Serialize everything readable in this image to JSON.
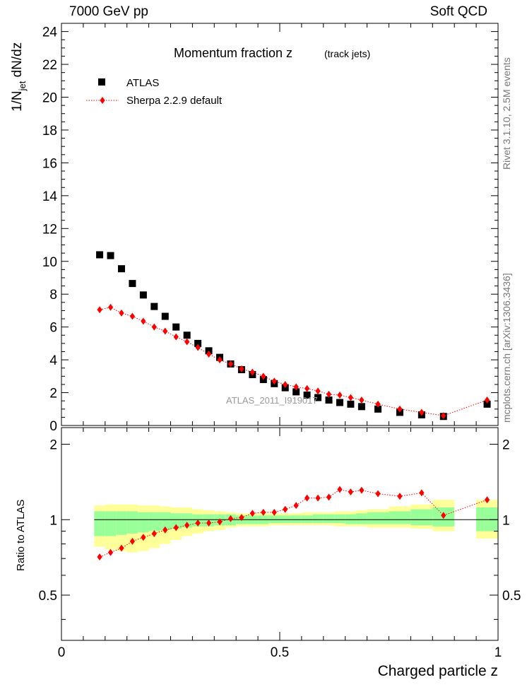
{
  "header": {
    "energy_label": "7000 GeV pp",
    "process_label": "Soft QCD"
  },
  "side": {
    "rivet_label": "Rivet 3.1.10,  2.5M events",
    "source_label": "mcplots.cern.ch [arXiv:1306.3436]"
  },
  "watermark": "ATLAS_2011_I919017",
  "chart_data": {
    "type": "scatter",
    "title": "Momentum fraction z",
    "subtitle": "(track jets)",
    "xlabel": "Charged particle z",
    "ylabel": "1/N_jet dN/dz",
    "ylabel_ratio": "Ratio to ATLAS",
    "xlim": [
      0,
      1.0
    ],
    "ylim": [
      0,
      24.5
    ],
    "ratio_ylim": [
      0.33,
      2.33
    ],
    "x_ticks": [
      "0",
      "0.5",
      "1"
    ],
    "y_ticks": [
      "0",
      "2",
      "4",
      "6",
      "8",
      "10",
      "12",
      "14",
      "16",
      "18",
      "20",
      "22",
      "24"
    ],
    "ratio_ticks": [
      "0.5",
      "1",
      "2"
    ],
    "legend": [
      "ATLAS",
      "Sherpa 2.2.9 default"
    ],
    "bins": [
      [
        0.075,
        0.1
      ],
      [
        0.1,
        0.125
      ],
      [
        0.125,
        0.15
      ],
      [
        0.15,
        0.175
      ],
      [
        0.175,
        0.2
      ],
      [
        0.2,
        0.225
      ],
      [
        0.225,
        0.25
      ],
      [
        0.25,
        0.275
      ],
      [
        0.275,
        0.3
      ],
      [
        0.3,
        0.325
      ],
      [
        0.325,
        0.35
      ],
      [
        0.35,
        0.375
      ],
      [
        0.375,
        0.4
      ],
      [
        0.4,
        0.425
      ],
      [
        0.425,
        0.45
      ],
      [
        0.45,
        0.475
      ],
      [
        0.475,
        0.5
      ],
      [
        0.5,
        0.525
      ],
      [
        0.525,
        0.55
      ],
      [
        0.55,
        0.575
      ],
      [
        0.575,
        0.6
      ],
      [
        0.6,
        0.625
      ],
      [
        0.625,
        0.65
      ],
      [
        0.65,
        0.675
      ],
      [
        0.675,
        0.7
      ],
      [
        0.7,
        0.75
      ],
      [
        0.75,
        0.8
      ],
      [
        0.8,
        0.85
      ],
      [
        0.85,
        0.9
      ],
      [
        0.95,
        1.0
      ]
    ],
    "series": [
      {
        "name": "ATLAS",
        "marker": "square",
        "color": "#000000",
        "x": [
          0.0875,
          0.1125,
          0.1375,
          0.1625,
          0.1875,
          0.2125,
          0.2375,
          0.2625,
          0.2875,
          0.3125,
          0.3375,
          0.3625,
          0.3875,
          0.4125,
          0.4375,
          0.4625,
          0.4875,
          0.5125,
          0.5375,
          0.5625,
          0.5875,
          0.6125,
          0.6375,
          0.6625,
          0.6875,
          0.725,
          0.775,
          0.825,
          0.875,
          0.975
        ],
        "y": [
          10.4,
          10.35,
          9.55,
          8.65,
          7.95,
          7.25,
          6.65,
          6.0,
          5.5,
          5.0,
          4.55,
          4.15,
          3.75,
          3.4,
          3.1,
          2.8,
          2.55,
          2.3,
          2.05,
          1.85,
          1.7,
          1.55,
          1.4,
          1.3,
          1.15,
          1.0,
          0.8,
          0.65,
          0.55,
          1.3
        ]
      },
      {
        "name": "Sherpa 2.2.9 default",
        "marker": "diamond",
        "color": "#ff0000",
        "x": [
          0.0875,
          0.1125,
          0.1375,
          0.1625,
          0.1875,
          0.2125,
          0.2375,
          0.2625,
          0.2875,
          0.3125,
          0.3375,
          0.3625,
          0.3875,
          0.4125,
          0.4375,
          0.4625,
          0.4875,
          0.5125,
          0.5375,
          0.5625,
          0.5875,
          0.6125,
          0.6375,
          0.6625,
          0.6875,
          0.725,
          0.775,
          0.825,
          0.875,
          0.975
        ],
        "y": [
          7.05,
          7.2,
          6.85,
          6.65,
          6.35,
          6.0,
          5.75,
          5.4,
          5.1,
          4.75,
          4.35,
          4.0,
          3.75,
          3.45,
          3.25,
          3.0,
          2.7,
          2.5,
          2.35,
          2.25,
          2.1,
          1.9,
          1.85,
          1.7,
          1.55,
          1.3,
          1.0,
          0.8,
          0.6,
          1.55
        ]
      }
    ],
    "ratio": [
      0.71,
      0.74,
      0.77,
      0.82,
      0.85,
      0.88,
      0.91,
      0.93,
      0.95,
      0.97,
      0.97,
      0.98,
      1.01,
      1.02,
      1.06,
      1.07,
      1.07,
      1.1,
      1.14,
      1.22,
      1.22,
      1.23,
      1.32,
      1.29,
      1.31,
      1.27,
      1.24,
      1.28,
      1.04,
      1.2
    ],
    "band_inner": [
      [
        0.86,
        1.08
      ],
      [
        0.86,
        1.08
      ],
      [
        0.87,
        1.08
      ],
      [
        0.88,
        1.08
      ],
      [
        0.89,
        1.07
      ],
      [
        0.9,
        1.07
      ],
      [
        0.91,
        1.07
      ],
      [
        0.92,
        1.06
      ],
      [
        0.93,
        1.06
      ],
      [
        0.94,
        1.05
      ],
      [
        0.94,
        1.05
      ],
      [
        0.95,
        1.05
      ],
      [
        0.95,
        1.05
      ],
      [
        0.96,
        1.04
      ],
      [
        0.96,
        1.04
      ],
      [
        0.96,
        1.04
      ],
      [
        0.97,
        1.04
      ],
      [
        0.97,
        1.04
      ],
      [
        0.97,
        1.04
      ],
      [
        0.97,
        1.04
      ],
      [
        0.97,
        1.05
      ],
      [
        0.97,
        1.05
      ],
      [
        0.97,
        1.05
      ],
      [
        0.96,
        1.05
      ],
      [
        0.96,
        1.06
      ],
      [
        0.96,
        1.07
      ],
      [
        0.96,
        1.08
      ],
      [
        0.95,
        1.1
      ],
      [
        0.94,
        1.12
      ],
      [
        0.9,
        1.12
      ]
    ],
    "band_outer": [
      [
        0.78,
        1.14
      ],
      [
        0.76,
        1.15
      ],
      [
        0.75,
        1.15
      ],
      [
        0.74,
        1.15
      ],
      [
        0.75,
        1.14
      ],
      [
        0.77,
        1.14
      ],
      [
        0.8,
        1.13
      ],
      [
        0.83,
        1.12
      ],
      [
        0.86,
        1.12
      ],
      [
        0.88,
        1.1
      ],
      [
        0.9,
        1.09
      ],
      [
        0.91,
        1.08
      ],
      [
        0.93,
        1.07
      ],
      [
        0.94,
        1.06
      ],
      [
        0.94,
        1.06
      ],
      [
        0.94,
        1.06
      ],
      [
        0.95,
        1.06
      ],
      [
        0.95,
        1.06
      ],
      [
        0.95,
        1.06
      ],
      [
        0.95,
        1.07
      ],
      [
        0.95,
        1.07
      ],
      [
        0.95,
        1.07
      ],
      [
        0.94,
        1.08
      ],
      [
        0.94,
        1.08
      ],
      [
        0.94,
        1.09
      ],
      [
        0.93,
        1.1
      ],
      [
        0.93,
        1.13
      ],
      [
        0.92,
        1.15
      ],
      [
        0.9,
        1.2
      ],
      [
        0.84,
        1.2
      ]
    ]
  }
}
